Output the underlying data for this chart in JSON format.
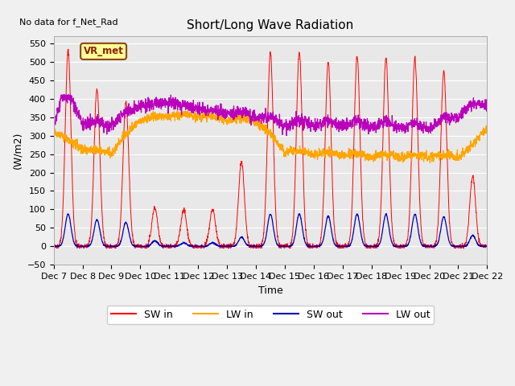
{
  "title": "Short/Long Wave Radiation",
  "ylabel": "(W/m2)",
  "xlabel": "Time",
  "annotation": "No data for f_Net_Rad",
  "legend_label": "VR_met",
  "ylim": [
    -50,
    570
  ],
  "yticks": [
    -50,
    0,
    50,
    100,
    150,
    200,
    250,
    300,
    350,
    400,
    450,
    500,
    550
  ],
  "colors": {
    "SW_in": "#ff0000",
    "LW_in": "#ffa500",
    "SW_out": "#0000bb",
    "LW_out": "#bb00bb"
  },
  "bg_color": "#e8e8e8",
  "n_days": 15,
  "start_day": 7,
  "end_day": 22,
  "SW_in_peaks": [
    530,
    425,
    390,
    105,
    100,
    100,
    230,
    525,
    525,
    500,
    515,
    510,
    510,
    475,
    190
  ],
  "SW_out_peaks": [
    88,
    72,
    65,
    15,
    10,
    10,
    25,
    88,
    88,
    82,
    87,
    87,
    87,
    80,
    30
  ],
  "LW_in_nodes_x": [
    0,
    0.5,
    1.0,
    1.5,
    2.0,
    3.0,
    4.0,
    5.0,
    6.0,
    7.0,
    8.0,
    9.0,
    10.0,
    11.0,
    12.0,
    13.0,
    14.0,
    14.5,
    15.0
  ],
  "LW_in_nodes_y": [
    310,
    280,
    260,
    252,
    250,
    340,
    350,
    350,
    340,
    340,
    252,
    248,
    245,
    242,
    240,
    240,
    240,
    265,
    320
  ],
  "LW_out_nodes_x": [
    0,
    0.3,
    0.7,
    1.0,
    1.5,
    2.0,
    3.0,
    4.0,
    5.0,
    6.0,
    7.0,
    8.0,
    9.0,
    10.0,
    11.0,
    12.0,
    13.0,
    14.0,
    14.5,
    15.0
  ],
  "LW_out_nodes_y": [
    325,
    400,
    380,
    330,
    325,
    325,
    380,
    390,
    370,
    360,
    350,
    325,
    325,
    325,
    322,
    320,
    318,
    350,
    380,
    385
  ]
}
